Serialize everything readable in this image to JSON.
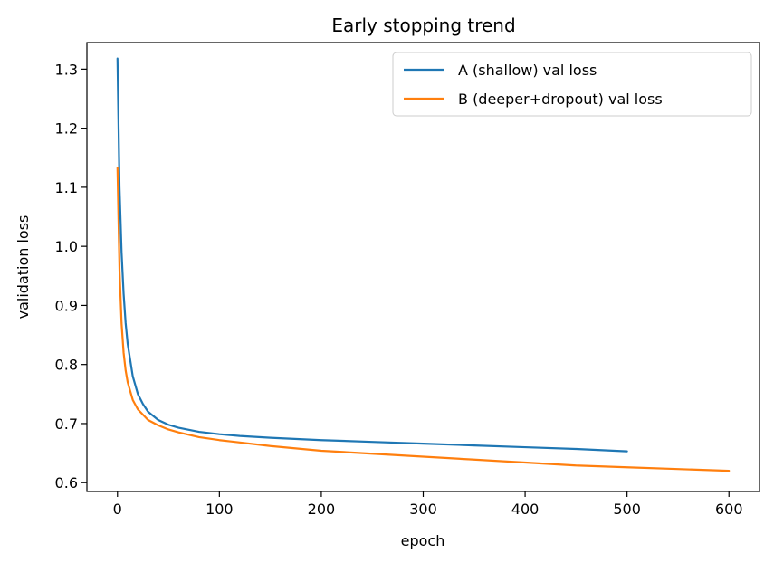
{
  "chart_data": {
    "type": "line",
    "title": "Early stopping trend",
    "xlabel": "epoch",
    "ylabel": "validation loss",
    "xlim": [
      -30,
      630
    ],
    "ylim": [
      0.585,
      1.345
    ],
    "xticks": [
      0,
      100,
      200,
      300,
      400,
      500,
      600
    ],
    "yticks": [
      0.6,
      0.7,
      0.8,
      0.9,
      1.0,
      1.1,
      1.2,
      1.3
    ],
    "ytick_labels": [
      "0.6",
      "0.7",
      "0.8",
      "0.9",
      "1.0",
      "1.1",
      "1.2",
      "1.3"
    ],
    "grid": false,
    "legend_position": "top-right",
    "series": [
      {
        "name": "A (shallow) val loss",
        "color": "#1f77b4",
        "x": [
          0,
          2,
          4,
          6,
          8,
          10,
          15,
          20,
          25,
          30,
          40,
          50,
          60,
          80,
          100,
          120,
          150,
          200,
          250,
          300,
          350,
          400,
          450,
          500
        ],
        "y": [
          1.318,
          1.1,
          0.99,
          0.92,
          0.87,
          0.835,
          0.78,
          0.75,
          0.733,
          0.72,
          0.706,
          0.698,
          0.693,
          0.686,
          0.682,
          0.679,
          0.676,
          0.672,
          0.669,
          0.666,
          0.663,
          0.66,
          0.657,
          0.653
        ]
      },
      {
        "name": "B (deeper+dropout) val loss",
        "color": "#ff7f0e",
        "x": [
          0,
          2,
          4,
          6,
          8,
          10,
          15,
          20,
          25,
          30,
          40,
          50,
          60,
          80,
          100,
          120,
          150,
          200,
          250,
          300,
          350,
          400,
          450,
          500,
          550,
          600
        ],
        "y": [
          1.133,
          0.96,
          0.87,
          0.82,
          0.79,
          0.77,
          0.74,
          0.724,
          0.715,
          0.706,
          0.697,
          0.69,
          0.685,
          0.677,
          0.672,
          0.668,
          0.662,
          0.654,
          0.649,
          0.644,
          0.639,
          0.634,
          0.629,
          0.626,
          0.623,
          0.62
        ]
      }
    ]
  }
}
